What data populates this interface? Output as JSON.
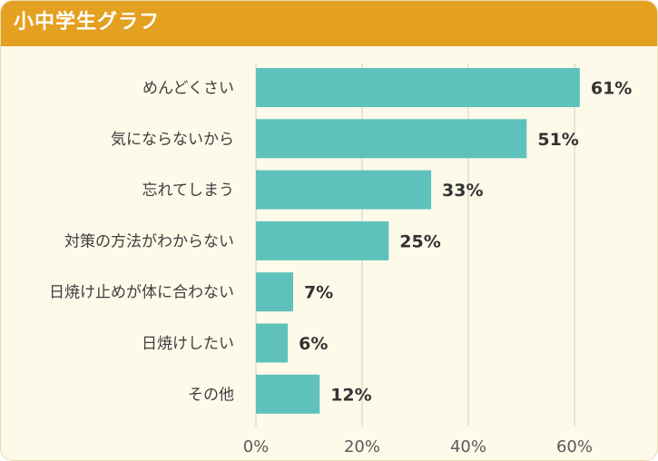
{
  "header": {
    "title": "小中学生グラフ"
  },
  "colors": {
    "header": "#e4a020",
    "bar": "#5fc1bb",
    "background": "#fdfaea",
    "grid": "#dcdcd4"
  },
  "chart_data": {
    "type": "bar",
    "orientation": "horizontal",
    "title": "小中学生グラフ",
    "categories": [
      "めんどくさい",
      "気にならないから",
      "忘れてしまう",
      "対策の方法がわからない",
      "日焼け止めが体に合わない",
      "日焼けしたい",
      "その他"
    ],
    "values": [
      61,
      51,
      33,
      25,
      7,
      6,
      12
    ],
    "value_labels": [
      "61%",
      "51%",
      "33%",
      "25%",
      "7%",
      "6%",
      "12%"
    ],
    "x_ticks": [
      0,
      20,
      40,
      60
    ],
    "x_tick_labels": [
      "0%",
      "20%",
      "40%",
      "60%"
    ],
    "xlim": [
      0,
      60
    ],
    "grid": true,
    "legend": "none"
  }
}
